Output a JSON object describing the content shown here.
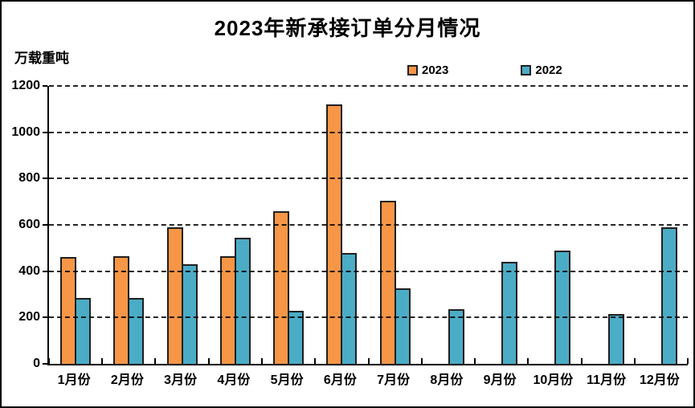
{
  "page": {
    "background": "#ffffff",
    "frame_border_color": "#000000"
  },
  "chart_data": {
    "type": "bar",
    "title": "2023年新承接订单分月情况",
    "unit_label": "万载重吨",
    "categories": [
      "1月份",
      "2月份",
      "3月份",
      "4月份",
      "5月份",
      "6月份",
      "7月份",
      "8月份",
      "9月份",
      "10月份",
      "11月份",
      "12月份"
    ],
    "series": [
      {
        "name": "2023",
        "color": "#F79646",
        "values": [
          460,
          465,
          590,
          465,
          660,
          1120,
          705,
          null,
          null,
          null,
          null,
          null
        ]
      },
      {
        "name": "2022",
        "color": "#4BACC6",
        "values": [
          285,
          285,
          430,
          545,
          230,
          480,
          325,
          235,
          440,
          490,
          215,
          590
        ]
      }
    ],
    "ylim": [
      0,
      1200
    ],
    "ytick_step": 200,
    "yticks": [
      0,
      200,
      400,
      600,
      800,
      1000,
      1200
    ],
    "grid": "horizontal-dashed-black",
    "legend_position": "top-center",
    "bar_border_color": "#1f1f1f",
    "axis_color": "#000000"
  }
}
